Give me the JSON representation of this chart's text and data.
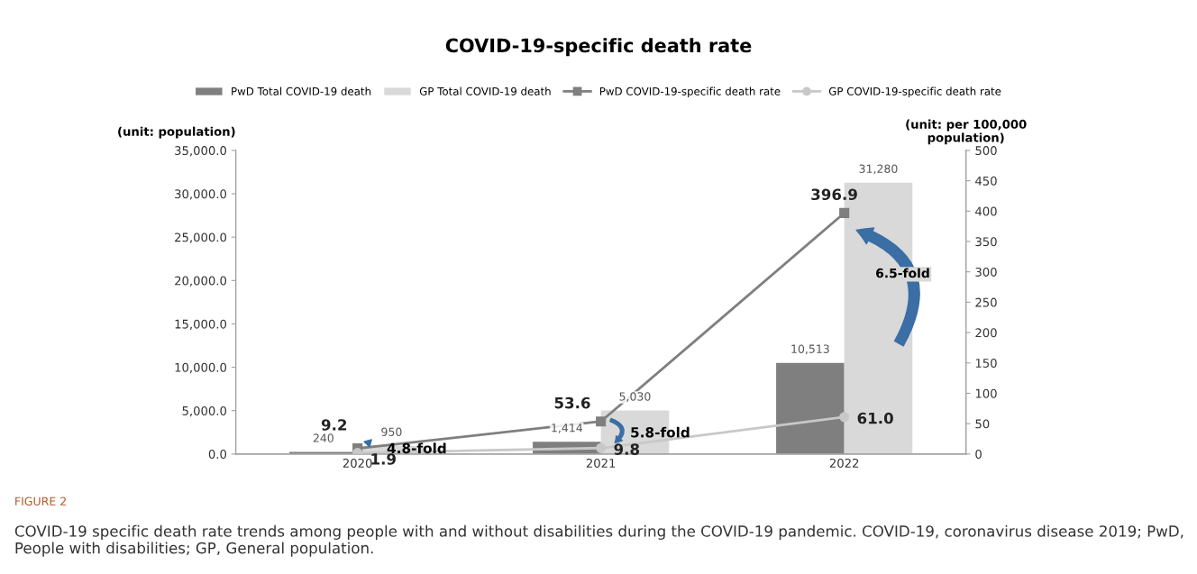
{
  "chart_data": {
    "type": "bar",
    "title": "COVID-19-specific death rate",
    "categories": [
      "2020",
      "2021",
      "2022"
    ],
    "ylabel": "(unit: population)",
    "y2label": "(unit: per 100,000\npopulation)",
    "ylim": [
      0,
      35000
    ],
    "yticks": [
      {
        "value": 0,
        "label": "0.0"
      },
      {
        "value": 5000,
        "label": "5,000.0"
      },
      {
        "value": 10000,
        "label": "10,000.0"
      },
      {
        "value": 15000,
        "label": "15,000.0"
      },
      {
        "value": 20000,
        "label": "20,000.0"
      },
      {
        "value": 25000,
        "label": "25,000.0"
      },
      {
        "value": 30000,
        "label": "30,000.0"
      },
      {
        "value": 35000,
        "label": "35,000.0"
      }
    ],
    "y2lim": [
      0,
      500
    ],
    "y2ticks": [
      0,
      50,
      100,
      150,
      200,
      250,
      300,
      350,
      400,
      450,
      500
    ],
    "series": [
      {
        "name": "PwD Total COVID-19 death",
        "color": "#7f7f7f",
        "values": [
          240,
          1414,
          10513
        ],
        "value_labels": [
          "240",
          "1,414",
          "10,513"
        ]
      },
      {
        "name": "GP Total COVID-19 death",
        "color": "#d9d9d9",
        "values": [
          950,
          5030,
          31280
        ],
        "value_labels": [
          "950",
          "5,030",
          "31,280"
        ]
      },
      {
        "name": "PwD COVID-19-specific death rate",
        "type": "line",
        "axis": "y2",
        "marker": "square",
        "color": "#7f7f7f",
        "values": [
          9.2,
          53.6,
          396.9
        ],
        "value_labels": [
          "9.2",
          "53.6",
          "396.9"
        ]
      },
      {
        "name": "GP COVID-19-specific death rate",
        "type": "line",
        "axis": "y2",
        "marker": "circle",
        "color": "#c8c8c8",
        "values": [
          1.9,
          9.8,
          61.0
        ],
        "value_labels": [
          "1.9",
          "9.8",
          "61.0"
        ]
      }
    ],
    "annotations": [
      "4.8-fold",
      "5.8-fold",
      "6.5-fold",
      "FIGURE 2",
      "COVID-19 specific death rate trends among people with and without disabilities during the COVID-19 pandemic. COVID-19, coronavirus disease 2019; PwD, People with disabilities; GP, General population."
    ],
    "legend": "top",
    "grid": false
  }
}
